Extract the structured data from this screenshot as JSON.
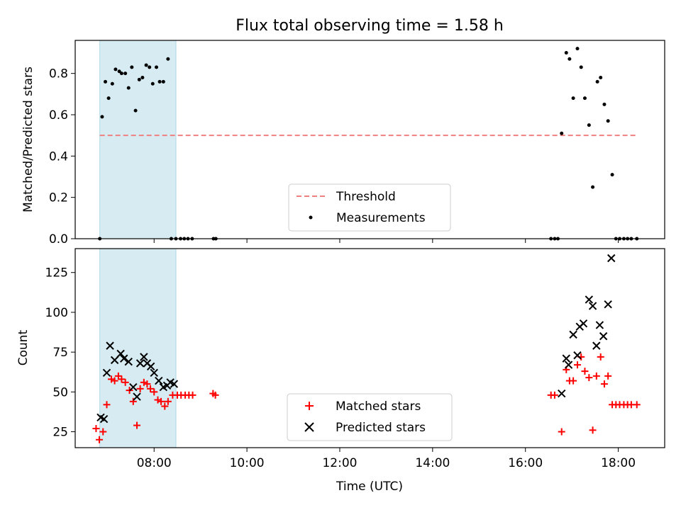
{
  "title": "Flux total observing time = 1.58 h",
  "colors": {
    "band": "#add8e6",
    "threshold": "#f08080",
    "measurement": "#000000",
    "matched": "#ff0000",
    "predicted": "#000000"
  },
  "chart_data": [
    {
      "type": "scatter",
      "ylabel": "Matched/Predicted stars",
      "xlim_hours": [
        6.3,
        19.0
      ],
      "ylim": [
        0,
        0.96
      ],
      "yticks": [
        0.0,
        0.2,
        0.4,
        0.6,
        0.8
      ],
      "ytick_labels": [
        "0.0",
        "0.2",
        "0.4",
        "0.6",
        "0.8"
      ],
      "shaded_span_hours": [
        6.83,
        8.47
      ],
      "legend": [
        "Threshold",
        "Measurements"
      ],
      "legend_position": "lower-center",
      "threshold": {
        "name": "Threshold",
        "y": 0.5,
        "x_from": 6.83,
        "x_to": 18.4,
        "style": "dashed"
      },
      "series": [
        {
          "name": "Measurements",
          "x": [
            6.83,
            6.88,
            6.95,
            7.02,
            7.1,
            7.17,
            7.25,
            7.3,
            7.38,
            7.45,
            7.52,
            7.6,
            7.68,
            7.75,
            7.83,
            7.9,
            7.97,
            8.05,
            8.12,
            8.2,
            8.3,
            8.37,
            8.47,
            8.57,
            8.65,
            8.73,
            8.82,
            9.28,
            9.33,
            16.55,
            16.63,
            16.7,
            16.78,
            16.88,
            16.95,
            17.03,
            17.12,
            17.2,
            17.28,
            17.37,
            17.45,
            17.55,
            17.62,
            17.7,
            17.78,
            17.87,
            17.95,
            18.03,
            18.12,
            18.2,
            18.28,
            18.4
          ],
          "y": [
            0.0,
            0.59,
            0.76,
            0.68,
            0.75,
            0.82,
            0.81,
            0.8,
            0.8,
            0.73,
            0.83,
            0.62,
            0.77,
            0.78,
            0.84,
            0.83,
            0.75,
            0.83,
            0.76,
            0.76,
            0.87,
            0.0,
            0.0,
            0.0,
            0.0,
            0.0,
            0.0,
            0.0,
            0.0,
            0.0,
            0.0,
            0.0,
            0.51,
            0.9,
            0.87,
            0.68,
            0.92,
            0.83,
            0.68,
            0.55,
            0.25,
            0.76,
            0.78,
            0.65,
            0.57,
            0.31,
            0.0,
            0.0,
            0.0,
            0.0,
            0.0,
            0.0
          ]
        }
      ]
    },
    {
      "type": "scatter",
      "ylabel": "Count",
      "xlabel": "Time (UTC)",
      "xlim_hours": [
        6.3,
        19.0
      ],
      "ylim": [
        15,
        140
      ],
      "yticks": [
        25,
        50,
        75,
        100,
        125
      ],
      "ytick_labels": [
        "25",
        "50",
        "75",
        "100",
        "125"
      ],
      "xticks_hours": [
        8,
        10,
        12,
        14,
        16,
        18
      ],
      "xtick_labels": [
        "08:00",
        "10:00",
        "12:00",
        "14:00",
        "16:00",
        "18:00"
      ],
      "shaded_span_hours": [
        6.83,
        8.47
      ],
      "legend": [
        "Matched stars",
        "Predicted stars"
      ],
      "legend_position": "lower-center",
      "series": [
        {
          "name": "Matched stars",
          "marker": "plus",
          "x": [
            6.75,
            6.82,
            6.9,
            6.98,
            7.08,
            7.15,
            7.23,
            7.3,
            7.38,
            7.47,
            7.55,
            7.63,
            7.7,
            7.78,
            7.85,
            7.92,
            8.0,
            8.08,
            8.15,
            8.23,
            8.3,
            8.4,
            8.5,
            8.58,
            8.67,
            8.75,
            8.83,
            9.27,
            9.32,
            16.55,
            16.63,
            16.78,
            16.88,
            16.95,
            17.03,
            17.12,
            17.2,
            17.28,
            17.37,
            17.45,
            17.53,
            17.62,
            17.7,
            17.78,
            17.87,
            17.95,
            18.03,
            18.12,
            18.2,
            18.28,
            18.4
          ],
          "y": [
            27,
            20,
            25,
            42,
            58,
            57,
            60,
            58,
            56,
            51,
            44,
            29,
            52,
            56,
            55,
            52,
            50,
            45,
            44,
            41,
            44,
            48,
            48,
            48,
            48,
            48,
            48,
            49,
            48,
            48,
            48,
            25,
            64,
            57,
            57,
            67,
            72,
            63,
            59,
            26,
            60,
            72,
            55,
            60,
            42,
            42,
            42,
            42,
            42,
            42,
            42
          ]
        },
        {
          "name": "Predicted stars",
          "marker": "x",
          "x": [
            6.85,
            6.92,
            6.98,
            7.05,
            7.15,
            7.28,
            7.35,
            7.45,
            7.55,
            7.63,
            7.7,
            7.78,
            7.85,
            7.93,
            8.0,
            8.1,
            8.2,
            8.28,
            8.35,
            8.43,
            16.78,
            16.88,
            16.93,
            17.03,
            17.12,
            17.17,
            17.25,
            17.37,
            17.45,
            17.53,
            17.6,
            17.68,
            17.78,
            17.85
          ],
          "y": [
            34,
            33,
            62,
            79,
            70,
            74,
            71,
            69,
            53,
            47,
            68,
            72,
            68,
            66,
            62,
            57,
            53,
            54,
            56,
            55,
            49,
            71,
            67,
            86,
            73,
            91,
            93,
            108,
            104,
            79,
            92,
            85,
            105,
            134
          ]
        }
      ]
    }
  ]
}
